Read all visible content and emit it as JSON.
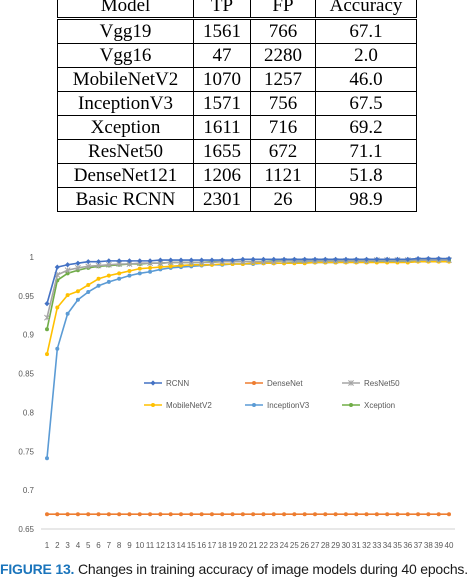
{
  "table": {
    "headers": [
      "Model",
      "TP",
      "FP",
      "Accuracy"
    ],
    "rows": [
      [
        "Vgg19",
        "1561",
        "766",
        "67.1"
      ],
      [
        "Vgg16",
        "47",
        "2280",
        "2.0"
      ],
      [
        "MobileNetV2",
        "1070",
        "1257",
        "46.0"
      ],
      [
        "InceptionV3",
        "1571",
        "756",
        "67.5"
      ],
      [
        "Xception",
        "1611",
        "716",
        "69.2"
      ],
      [
        "ResNet50",
        "1655",
        "672",
        "71.1"
      ],
      [
        "DenseNet121",
        "1206",
        "1121",
        "51.8"
      ],
      [
        "Basic RCNN",
        "2301",
        "26",
        "98.9"
      ]
    ]
  },
  "chart_data": {
    "type": "line",
    "title": "",
    "xlabel": "",
    "ylabel": "",
    "x": [
      1,
      2,
      3,
      4,
      5,
      6,
      7,
      8,
      9,
      10,
      11,
      12,
      13,
      14,
      15,
      16,
      17,
      18,
      19,
      20,
      21,
      22,
      23,
      24,
      25,
      26,
      27,
      28,
      29,
      30,
      31,
      32,
      33,
      34,
      35,
      36,
      37,
      38,
      39,
      40
    ],
    "ylim": [
      0.65,
      1
    ],
    "yticks": [
      0.65,
      0.7,
      0.75,
      0.8,
      0.85,
      0.9,
      0.95,
      1
    ],
    "ytick_labels": [
      "0.65",
      "0.7",
      "0.75",
      "0.8",
      "0.85",
      "0.9",
      "0.95",
      "1"
    ],
    "grid": false,
    "legend_position": "center",
    "series": [
      {
        "name": "RCNN",
        "color": "#4472c4",
        "marker": "diamond",
        "values": [
          0.94,
          0.987,
          0.99,
          0.992,
          0.994,
          0.994,
          0.995,
          0.995,
          0.995,
          0.995,
          0.995,
          0.996,
          0.996,
          0.996,
          0.996,
          0.996,
          0.996,
          0.996,
          0.996,
          0.997,
          0.997,
          0.997,
          0.997,
          0.997,
          0.997,
          0.997,
          0.997,
          0.997,
          0.997,
          0.997,
          0.997,
          0.997,
          0.997,
          0.997,
          0.997,
          0.997,
          0.998,
          0.998,
          0.998,
          0.998
        ]
      },
      {
        "name": "DenseNet",
        "color": "#ed7d31",
        "marker": "circle",
        "values": [
          0.669,
          0.669,
          0.669,
          0.669,
          0.669,
          0.669,
          0.669,
          0.669,
          0.669,
          0.669,
          0.669,
          0.669,
          0.669,
          0.669,
          0.669,
          0.669,
          0.669,
          0.669,
          0.669,
          0.669,
          0.669,
          0.669,
          0.669,
          0.669,
          0.669,
          0.669,
          0.669,
          0.669,
          0.669,
          0.669,
          0.669,
          0.669,
          0.669,
          0.669,
          0.669,
          0.669,
          0.669,
          0.669,
          0.669,
          0.669
        ]
      },
      {
        "name": "ResNet50",
        "color": "#a5a5a5",
        "marker": "star",
        "values": [
          0.922,
          0.977,
          0.983,
          0.986,
          0.988,
          0.989,
          0.99,
          0.991,
          0.991,
          0.992,
          0.992,
          0.992,
          0.993,
          0.993,
          0.993,
          0.993,
          0.993,
          0.994,
          0.994,
          0.994,
          0.994,
          0.994,
          0.994,
          0.995,
          0.995,
          0.995,
          0.995,
          0.995,
          0.995,
          0.995,
          0.995,
          0.995,
          0.996,
          0.996,
          0.996,
          0.996,
          0.996,
          0.996,
          0.996,
          0.996
        ]
      },
      {
        "name": "MobileNetV2",
        "color": "#ffc000",
        "marker": "circle",
        "values": [
          0.875,
          0.935,
          0.951,
          0.956,
          0.964,
          0.972,
          0.976,
          0.979,
          0.982,
          0.985,
          0.986,
          0.987,
          0.988,
          0.989,
          0.99,
          0.99,
          0.99,
          0.991,
          0.991,
          0.991,
          0.992,
          0.992,
          0.992,
          0.992,
          0.992,
          0.992,
          0.993,
          0.993,
          0.993,
          0.993,
          0.993,
          0.993,
          0.993,
          0.993,
          0.993,
          0.993,
          0.994,
          0.994,
          0.994,
          0.994
        ]
      },
      {
        "name": "InceptionV3",
        "color": "#5b9bd5",
        "marker": "circle",
        "values": [
          0.741,
          0.882,
          0.927,
          0.945,
          0.955,
          0.963,
          0.968,
          0.972,
          0.976,
          0.979,
          0.981,
          0.984,
          0.986,
          0.987,
          0.988,
          0.989,
          0.99,
          0.99,
          0.991,
          0.991,
          0.991,
          0.992,
          0.992,
          0.992,
          0.993,
          0.993,
          0.993,
          0.993,
          0.993,
          0.994,
          0.994,
          0.994,
          0.994,
          0.994,
          0.994,
          0.995,
          0.995,
          0.995,
          0.995,
          0.995
        ]
      },
      {
        "name": "Xception",
        "color": "#70ad47",
        "marker": "circle",
        "values": [
          0.907,
          0.97,
          0.979,
          0.983,
          0.986,
          0.988,
          0.989,
          0.99,
          0.991,
          0.991,
          0.992,
          0.992,
          0.993,
          0.993,
          0.993,
          0.993,
          0.994,
          0.994,
          0.994,
          0.994,
          0.994,
          0.994,
          0.995,
          0.995,
          0.995,
          0.995,
          0.995,
          0.995,
          0.995,
          0.995,
          0.995,
          0.995,
          0.996,
          0.996,
          0.996,
          0.996,
          0.996,
          0.996,
          0.996,
          0.996
        ]
      }
    ]
  },
  "caption": {
    "label": "FIGURE 13.",
    "text": "Changes in training accuracy of image models during 40 epochs."
  }
}
